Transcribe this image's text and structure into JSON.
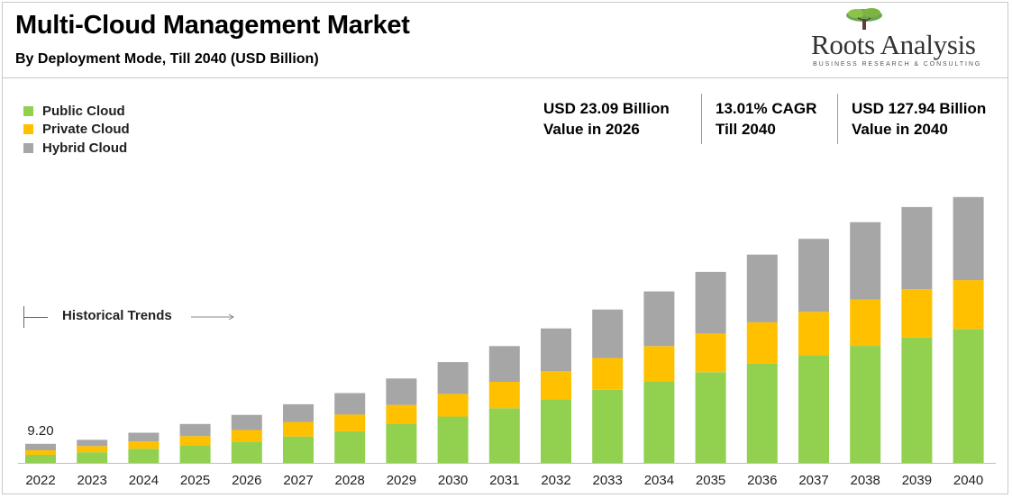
{
  "header": {
    "title": "Multi-Cloud Management Market",
    "subtitle": "By Deployment Mode, Till 2040 (USD Billion)"
  },
  "logo": {
    "name": "Roots Analysis",
    "tagline": "BUSINESS RESEARCH & CONSULTING",
    "icon": "tree-icon"
  },
  "stats": [
    {
      "line1": "USD 23.09 Billion",
      "line2": "Value in 2026"
    },
    {
      "line1": "13.01% CAGR",
      "line2": "Till 2040"
    },
    {
      "line1": "USD 127.94 Billion",
      "line2": "Value in 2040"
    }
  ],
  "annotation": {
    "historical": "Historical Trends"
  },
  "colors": {
    "public": "#92d050",
    "private": "#ffc000",
    "hybrid": "#a6a6a6"
  },
  "chart_data": {
    "type": "bar",
    "stacked": true,
    "title": "Multi-Cloud Management Market",
    "subtitle": "By Deployment Mode, Till 2040 (USD Billion)",
    "categories": [
      "2022",
      "2023",
      "2024",
      "2025",
      "2026",
      "2027",
      "2028",
      "2029",
      "2030",
      "2031",
      "2032",
      "2033",
      "2034",
      "2035",
      "2036",
      "2037",
      "2038",
      "2039",
      "2040"
    ],
    "series": [
      {
        "name": "Public Cloud",
        "color": "#92d050",
        "values": [
          3.9,
          5.1,
          6.8,
          8.4,
          10.2,
          12.7,
          15.2,
          18.8,
          22.3,
          26.3,
          30.6,
          35.1,
          39.0,
          43.6,
          47.7,
          51.8,
          56.3,
          60.3,
          64.4
        ]
      },
      {
        "name": "Private Cloud",
        "color": "#ffc000",
        "values": [
          2.2,
          3.0,
          3.6,
          4.5,
          5.6,
          7.0,
          8.1,
          9.1,
          10.9,
          12.7,
          13.6,
          15.4,
          17.2,
          18.6,
          19.9,
          20.9,
          22.3,
          23.2,
          23.5
        ]
      },
      {
        "name": "Hybrid Cloud",
        "color": "#a6a6a6",
        "values": [
          3.1,
          3.0,
          4.1,
          5.8,
          7.3,
          8.5,
          10.3,
          12.7,
          15.3,
          17.2,
          20.5,
          23.3,
          26.3,
          29.7,
          32.6,
          35.1,
          37.2,
          39.6,
          40.0
        ]
      }
    ],
    "data_labels": [
      {
        "category": "2022",
        "text": "9.20"
      }
    ],
    "totals_reference": {
      "2022": 9.2,
      "2026": 23.09,
      "2040": 127.94
    },
    "ylim": [
      0,
      140
    ],
    "grid": false,
    "legend": "top-left"
  }
}
